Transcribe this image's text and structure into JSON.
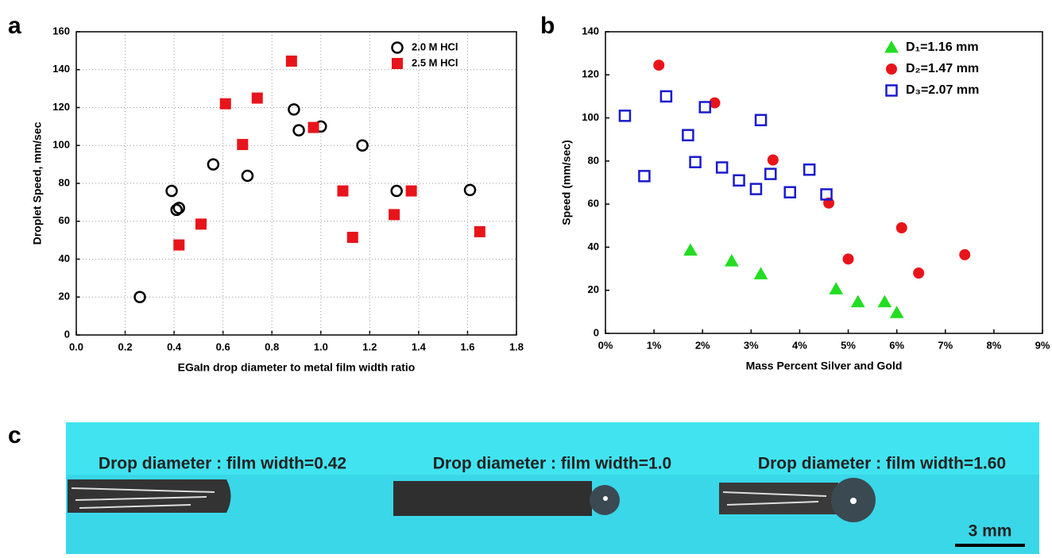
{
  "chart_data": [
    {
      "type": "scatter",
      "panel_label": "a",
      "ylabel": "Droplet Speed, mm/sec",
      "xlabel": "EGaIn drop diameter to metal film width ratio",
      "xlim": [
        0,
        1.8
      ],
      "xticks": [
        {
          "value": 0,
          "label": "0.0"
        },
        0.2,
        0.4,
        0.6,
        0.8,
        {
          "value": 1,
          "label": "1.0"
        },
        1.2,
        1.4,
        1.6,
        1.8
      ],
      "ylim": [
        0,
        160
      ],
      "yticks": [
        0,
        20,
        40,
        60,
        80,
        100,
        120,
        140,
        160
      ],
      "grid": true,
      "legend": "upper right",
      "series": [
        {
          "name": "2.0 M HCl",
          "color": "#000000",
          "marker": "circle-open",
          "x": [
            0.26,
            0.39,
            0.41,
            0.42,
            0.56,
            0.7,
            0.89,
            0.91,
            1.0,
            1.17,
            1.31,
            1.61
          ],
          "values": [
            20,
            76,
            66,
            67,
            90,
            84,
            119,
            108,
            110,
            100,
            76,
            76.5
          ]
        },
        {
          "name": "2.5 M HCl",
          "color": "#e8141b",
          "marker": "square",
          "x": [
            0.42,
            0.51,
            0.61,
            0.68,
            0.74,
            0.88,
            0.97,
            1.09,
            1.13,
            1.3,
            1.37,
            1.65
          ],
          "values": [
            47.5,
            58.5,
            122,
            100.5,
            125,
            144.5,
            109.5,
            76,
            51.5,
            63.5,
            76,
            54.5
          ]
        }
      ]
    },
    {
      "type": "scatter",
      "panel_label": "b",
      "ylabel": "Speed (mm/sec)",
      "xlabel": "Mass Percent Silver and Gold",
      "xlim": [
        0,
        9
      ],
      "xticks": [
        {
          "value": 0,
          "label": "0%"
        },
        {
          "value": 1,
          "label": "1%"
        },
        {
          "value": 2,
          "label": "2%"
        },
        {
          "value": 3,
          "label": "3%"
        },
        {
          "value": 4,
          "label": "4%"
        },
        {
          "value": 5,
          "label": "5%"
        },
        {
          "value": 6,
          "label": "6%"
        },
        {
          "value": 7,
          "label": "7%"
        },
        {
          "value": 8,
          "label": "8%"
        },
        {
          "value": 9,
          "label": "9%"
        }
      ],
      "ylim": [
        0,
        140
      ],
      "yticks": [
        0,
        20,
        40,
        60,
        80,
        100,
        120,
        140
      ],
      "grid": false,
      "legend": "upper right",
      "series": [
        {
          "name": "D₁=1.16 mm",
          "color": "#22dd22",
          "marker": "triangle",
          "x": [
            1.75,
            2.6,
            3.2,
            4.75,
            5.2,
            5.75,
            6.0
          ],
          "values": [
            38.5,
            33.5,
            27.5,
            20.5,
            14.5,
            14.5,
            9.5
          ]
        },
        {
          "name": "D₂=1.47 mm",
          "color": "#e8141b",
          "marker": "circle",
          "x": [
            1.1,
            2.25,
            3.45,
            4.6,
            5.0,
            6.1,
            6.45,
            7.4
          ],
          "values": [
            124.5,
            107,
            80.5,
            60.5,
            34.5,
            49,
            28,
            36.5
          ]
        },
        {
          "name": "D₃=2.07 mm",
          "color": "#1a1ad0",
          "marker": "square-open",
          "x": [
            0.4,
            0.8,
            1.25,
            1.7,
            1.85,
            2.05,
            2.4,
            2.75,
            3.1,
            3.2,
            3.4,
            3.8,
            4.2,
            4.55
          ],
          "values": [
            101,
            73,
            110,
            92,
            79.5,
            105,
            77,
            71,
            67,
            99,
            74,
            65.5,
            76,
            64.5
          ]
        }
      ]
    }
  ],
  "image_panel": {
    "panel_label": "c",
    "captions": [
      "Drop diameter : film width=0.42",
      "Drop diameter : film width=1.0",
      "Drop diameter : film width=1.60"
    ],
    "scale_bar": "3 mm"
  }
}
